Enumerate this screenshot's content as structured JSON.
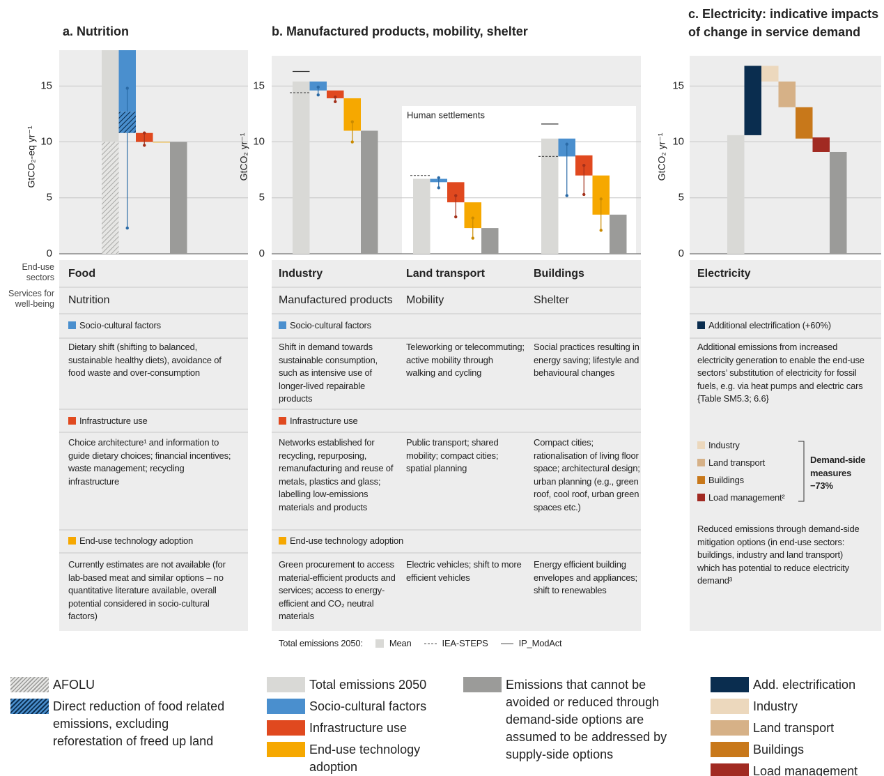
{
  "chart_data": [
    {
      "type": "waterfall",
      "title": "a. Nutrition",
      "y_label": "GtCO₂-eq yr⁻¹",
      "ylim": [
        0,
        18.2
      ],
      "yticks": [
        0,
        5,
        10,
        15
      ],
      "grid": true,
      "groups": [
        {
          "bars": [
            {
              "range": [
                0,
                18.2
              ],
              "color": "#d9d9d6"
            },
            {
              "range": [
                0,
                10
              ],
              "hatch": "grey"
            },
            {
              "range": [
                12.7,
                18.2
              ],
              "color": "#4a8fce",
              "whisker": [
                2.3,
                14.8
              ],
              "whisker_color": "#2a6aa6"
            },
            {
              "range": [
                10.8,
                12.7
              ],
              "hatch": "blue"
            },
            {
              "range": [
                10,
                10.8
              ],
              "color": "#e0491f",
              "whisker": [
                9.7,
                10.8
              ],
              "whisker_color": "#a3301a"
            },
            {
              "range": [
                9.95,
                10
              ],
              "color": "#f6a800"
            },
            {
              "range": [
                0,
                10
              ],
              "color": "#9b9b99"
            }
          ]
        }
      ]
    },
    {
      "type": "waterfall",
      "title": "b. Manufactured products, mobility, shelter",
      "y_label": "GtCO₂ yr⁻¹",
      "ylim": [
        0,
        17.7
      ],
      "yticks": [
        0,
        5,
        10,
        15
      ],
      "grid": true,
      "box_label": "Human settlements",
      "groups": [
        {
          "iea_steps": 14.4,
          "ip_modact": 16.3,
          "bars": [
            {
              "range": [
                0,
                15.4
              ],
              "color": "#d9d9d6"
            },
            {
              "range": [
                14.6,
                15.4
              ],
              "color": "#4a8fce",
              "whisker": [
                14.2,
                14.9
              ],
              "whisker_color": "#2a6aa6"
            },
            {
              "range": [
                13.9,
                14.6
              ],
              "color": "#e0491f",
              "whisker": [
                13.6,
                14.0
              ],
              "whisker_color": "#a3301a"
            },
            {
              "range": [
                11.0,
                13.9
              ],
              "color": "#f6a800",
              "whisker": [
                10.0,
                11.8
              ],
              "whisker_color": "#c98a00"
            },
            {
              "range": [
                0,
                11.0
              ],
              "color": "#9b9b99"
            }
          ]
        },
        {
          "iea_steps": 7.0,
          "bars": [
            {
              "range": [
                0,
                6.7
              ],
              "color": "#d9d9d6"
            },
            {
              "range": [
                6.4,
                6.7
              ],
              "color": "#4a8fce",
              "whisker": [
                5.9,
                6.8
              ],
              "whisker_color": "#2a6aa6"
            },
            {
              "range": [
                4.6,
                6.4
              ],
              "color": "#e0491f",
              "whisker": [
                3.3,
                5.2
              ],
              "whisker_color": "#a3301a"
            },
            {
              "range": [
                2.3,
                4.6
              ],
              "color": "#f6a800",
              "whisker": [
                1.4,
                3.2
              ],
              "whisker_color": "#c98a00"
            },
            {
              "range": [
                0,
                2.3
              ],
              "color": "#9b9b99"
            }
          ]
        },
        {
          "iea_steps": 8.7,
          "ip_modact": 11.6,
          "bars": [
            {
              "range": [
                0,
                10.3
              ],
              "color": "#d9d9d6"
            },
            {
              "range": [
                8.7,
                10.3
              ],
              "color": "#4a8fce",
              "whisker": [
                5.2,
                9.8
              ],
              "whisker_color": "#2a6aa6"
            },
            {
              "range": [
                7.0,
                8.8
              ],
              "color": "#e0491f",
              "whisker": [
                5.3,
                7.9
              ],
              "whisker_color": "#a3301a"
            },
            {
              "range": [
                3.5,
                7.0
              ],
              "color": "#f6a800",
              "whisker": [
                2.1,
                4.9
              ],
              "whisker_color": "#c98a00"
            },
            {
              "range": [
                0,
                3.5
              ],
              "color": "#9b9b99"
            }
          ]
        }
      ]
    },
    {
      "type": "waterfall",
      "title": "c. Electricity: indicative impacts of change in service demand",
      "y_label": "GtCO₂ yr⁻¹",
      "ylim": [
        0,
        17.7
      ],
      "yticks": [
        0,
        5,
        10,
        15
      ],
      "grid": true,
      "groups": [
        {
          "bars": [
            {
              "range": [
                0,
                10.6
              ],
              "color": "#d9d9d6"
            },
            {
              "range": [
                10.6,
                16.8
              ],
              "color": "#0a2d4f"
            },
            {
              "range": [
                15.4,
                16.8
              ],
              "color": "#ecd8bd"
            },
            {
              "range": [
                13.1,
                15.4
              ],
              "color": "#d6b187"
            },
            {
              "range": [
                10.3,
                13.1
              ],
              "color": "#c8781a"
            },
            {
              "range": [
                9.1,
                10.4
              ],
              "color": "#a12a22"
            },
            {
              "range": [
                0,
                9.1
              ],
              "color": "#9b9b99"
            }
          ]
        }
      ]
    }
  ],
  "table": {
    "row_headers": [
      "End-use sectors",
      "Services for well-being"
    ],
    "panels": [
      {
        "sectors": [
          "Food"
        ],
        "services": [
          "Nutrition"
        ],
        "sections": [
          {
            "header": "Socio-cultural factors",
            "color": "#4a8fce",
            "texts": [
              "Dietary shift (shifting to balanced, sustainable healthy diets), avoidance of food waste and over-consumption"
            ]
          },
          {
            "header": "Infrastructure use",
            "color": "#e0491f",
            "texts": [
              "Choice architecture¹ and information to guide dietary choices; financial incentives; waste management; recycling infrastructure"
            ]
          },
          {
            "header": "End-use technology adoption",
            "color": "#f6a800",
            "texts": [
              "Currently estimates are not available (for lab-based meat and similar options – no quantitative literature available, overall potential considered in socio-cultural factors)"
            ]
          }
        ]
      },
      {
        "sectors": [
          "Industry",
          "Land transport",
          "Buildings"
        ],
        "services": [
          "Manufactured products",
          "Mobility",
          "Shelter"
        ],
        "sections": [
          {
            "header": "Socio-cultural factors",
            "color": "#4a8fce",
            "texts": [
              "Shift in demand towards sustainable consumption, such as intensive use of longer-lived repairable products",
              "Teleworking or telecommuting; active mobility through walking and cycling",
              "Social practices resulting in energy saving; lifestyle and behavioural changes"
            ]
          },
          {
            "header": "Infrastructure use",
            "color": "#e0491f",
            "texts": [
              "Networks established for recycling, repurposing, remanufacturing and reuse of metals, plastics and glass; labelling low-emissions materials and products",
              "Public transport; shared mobility; compact cities; spatial planning",
              "Compact cities; rationalisation of living floor space; architectural design; urban planning (e.g., green roof, cool roof, urban green spaces etc.)"
            ]
          },
          {
            "header": "End-use technology adoption",
            "color": "#f6a800",
            "texts": [
              "Green procurement to access material-efficient products and services; access to energy-efficient and CO₂ neutral materials",
              "Electric vehicles; shift to more efficient vehicles",
              "Energy efficient building envelopes and appliances; shift to renewables"
            ]
          }
        ]
      }
    ],
    "electricity": {
      "sector": "Electricity",
      "header": "Additional electrification (+60%)",
      "color": "#0a2d4f",
      "text": "Additional emissions from increased electricity generation to enable the end-use sectors’ substitution of electricity for fossil fuels, e.g. via heat pumps and electric cars {Table SM5.3; 6.6}",
      "measures": [
        {
          "name": "Industry",
          "color": "#ecd8bd"
        },
        {
          "name": "Land transport",
          "color": "#d6b187"
        },
        {
          "name": "Buildings",
          "color": "#c8781a"
        },
        {
          "name": "Load management²",
          "color": "#a12a22"
        }
      ],
      "measures_label": "Demand-side measures −73%",
      "note": "Reduced emissions through demand-side mitigation options (in end-use sectors: buildings, industry and land transport) which has potential to reduce electricity demand³"
    },
    "emissions_legend": {
      "label": "Total emissions 2050:",
      "items": [
        {
          "text": "Mean",
          "color": "#d9d9d6"
        },
        {
          "text": "IEA-STEPS",
          "line": "dashed"
        },
        {
          "text": "IP_ModAct",
          "line": "solid"
        }
      ]
    }
  },
  "legends": [
    [
      {
        "text": "AFOLU",
        "hatch": "grey"
      },
      {
        "text": "Direct reduction of food related emissions, excluding reforestation of freed up land",
        "hatch": "blue"
      }
    ],
    [
      {
        "text": "Total emissions 2050",
        "color": "#d9d9d6"
      },
      {
        "text": "Socio-cultural factors",
        "color": "#4a8fce"
      },
      {
        "text": "Infrastructure use",
        "color": "#e0491f"
      },
      {
        "text": "End-use technology adoption",
        "color": "#f6a800"
      }
    ],
    [
      {
        "text": "Emissions that cannot be avoided or reduced through demand-side options are assumed to be addressed by supply-side options",
        "color": "#9b9b99"
      }
    ],
    [
      {
        "text": "Add. electrification",
        "color": "#0a2d4f"
      },
      {
        "text": "Industry",
        "color": "#ecd8bd"
      },
      {
        "text": "Land transport",
        "color": "#d6b187"
      },
      {
        "text": "Buildings",
        "color": "#c8781a"
      },
      {
        "text": "Load management",
        "color": "#a12a22"
      }
    ]
  ]
}
